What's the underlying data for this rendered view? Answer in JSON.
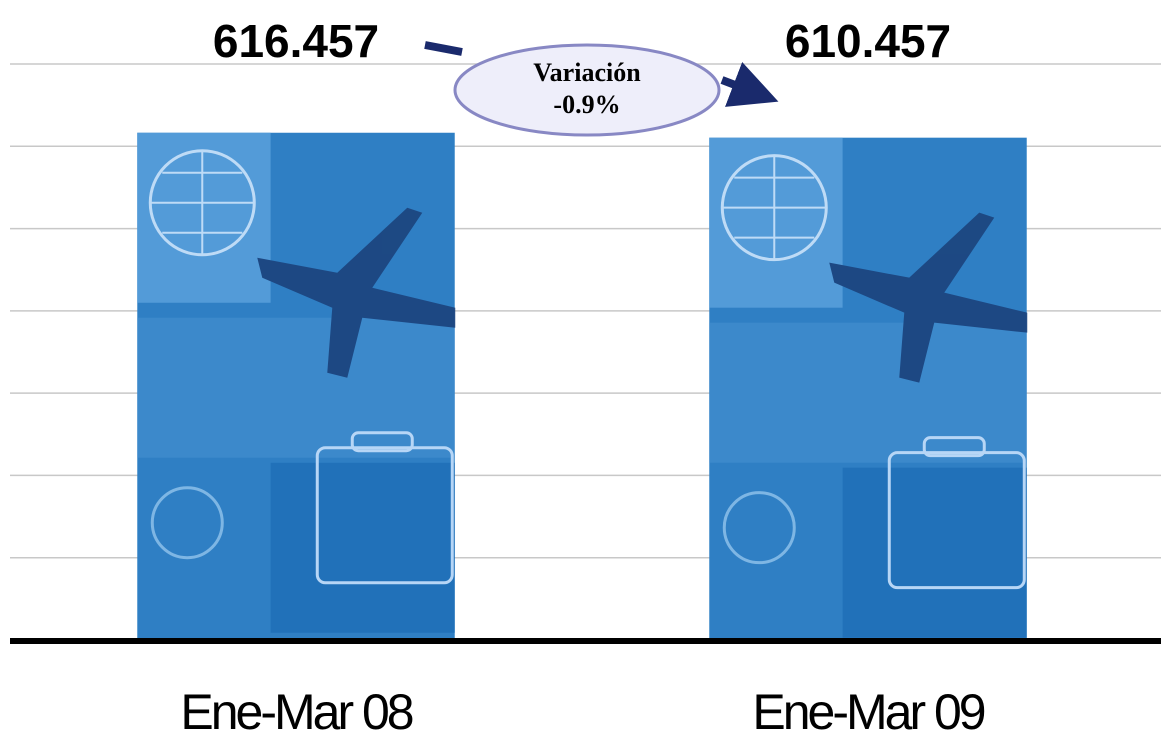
{
  "chart_data": {
    "type": "bar",
    "categories": [
      "Ene-Mar 08",
      "Ene-Mar 09"
    ],
    "values": [
      616457,
      610457
    ],
    "value_labels": [
      "616.457",
      "610.457"
    ],
    "color": "#2f7fc4",
    "ylim": [
      0,
      700000
    ],
    "yticks": [
      0,
      100000,
      200000,
      300000,
      400000,
      500000,
      600000,
      700000
    ],
    "ytick_labels": false,
    "grid": true,
    "annotation": {
      "title": "Variación",
      "text": "-0.9%"
    }
  }
}
